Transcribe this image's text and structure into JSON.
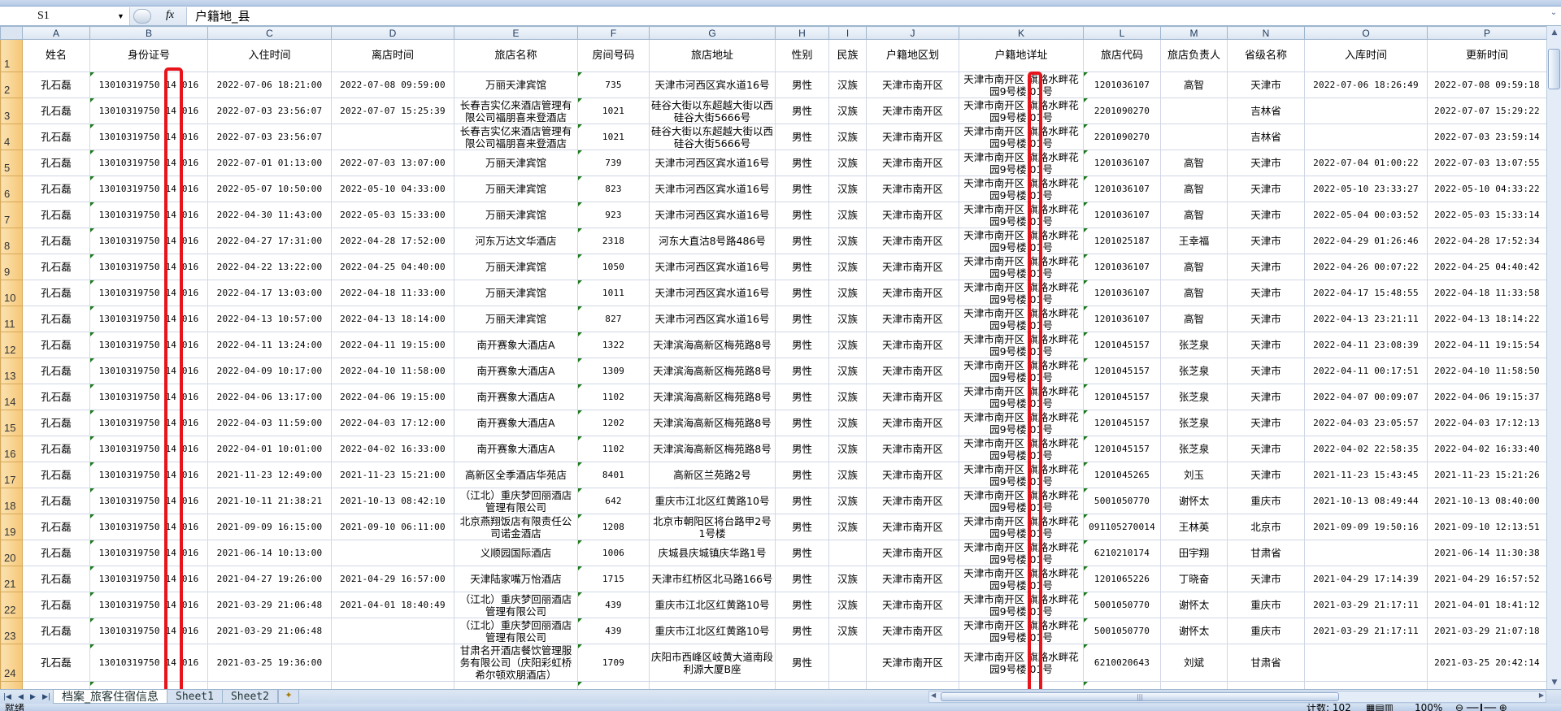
{
  "formula_bar": {
    "name_box": "S1",
    "dropdown_icon": "chevron-down-icon",
    "fx_label": "fx",
    "content": "户籍地_县"
  },
  "columns": [
    "A",
    "B",
    "C",
    "D",
    "E",
    "F",
    "G",
    "H",
    "I",
    "J",
    "K",
    "L",
    "M",
    "N",
    "O",
    "P"
  ],
  "headers": [
    "姓名",
    "身份证号",
    "入住时间",
    "离店时间",
    "旅店名称",
    "房间号码",
    "旅店地址",
    "性别",
    "民族",
    "户籍地区划",
    "户籍地详址",
    "旅店代码",
    "旅店负责人",
    "省级名称",
    "入库时间",
    "更新时间"
  ],
  "rows": [
    [
      "孔石磊",
      "13010319750 14 016",
      "2022-07-06 18:21:00",
      "2022-07-08 09:59:00",
      "万丽天津宾馆",
      "735",
      "天津市河西区宾水道16号",
      "男性",
      "汉族",
      "天津市南开区",
      "天津市南开区 旗路水畔花园9号楼 01号",
      "1201036107",
      "高智",
      "天津市",
      "2022-07-06 18:26:49",
      "2022-07-08 09:59:18"
    ],
    [
      "孔石磊",
      "13010319750 14 016",
      "2022-07-03 23:56:07",
      "2022-07-07 15:25:39",
      "长春吉实亿来酒店管理有限公司福朋喜来登酒店",
      "1021",
      "硅谷大街以东超越大街以西硅谷大街5666号",
      "男性",
      "汉族",
      "天津市南开区",
      "天津市南开区 旗路水畔花园9号楼 01号",
      "2201090270",
      "",
      "吉林省",
      "",
      "2022-07-07 15:29:22"
    ],
    [
      "孔石磊",
      "13010319750 14 016",
      "2022-07-03 23:56:07",
      "",
      "长春吉实亿来酒店管理有限公司福朋喜来登酒店",
      "1021",
      "硅谷大街以东超越大街以西硅谷大街5666号",
      "男性",
      "汉族",
      "天津市南开区",
      "天津市南开区 旗路水畔花园9号楼 01号",
      "2201090270",
      "",
      "吉林省",
      "",
      "2022-07-03 23:59:14"
    ],
    [
      "孔石磊",
      "13010319750 14 016",
      "2022-07-01 01:13:00",
      "2022-07-03 13:07:00",
      "万丽天津宾馆",
      "739",
      "天津市河西区宾水道16号",
      "男性",
      "汉族",
      "天津市南开区",
      "天津市南开区 旗路水畔花园9号楼 01号",
      "1201036107",
      "高智",
      "天津市",
      "2022-07-04 01:00:22",
      "2022-07-03 13:07:55"
    ],
    [
      "孔石磊",
      "13010319750 14 016",
      "2022-05-07 10:50:00",
      "2022-05-10 04:33:00",
      "万丽天津宾馆",
      "823",
      "天津市河西区宾水道16号",
      "男性",
      "汉族",
      "天津市南开区",
      "天津市南开区 旗路水畔花园9号楼 01号",
      "1201036107",
      "高智",
      "天津市",
      "2022-05-10 23:33:27",
      "2022-05-10 04:33:22"
    ],
    [
      "孔石磊",
      "13010319750 14 016",
      "2022-04-30 11:43:00",
      "2022-05-03 15:33:00",
      "万丽天津宾馆",
      "923",
      "天津市河西区宾水道16号",
      "男性",
      "汉族",
      "天津市南开区",
      "天津市南开区 旗路水畔花园9号楼 01号",
      "1201036107",
      "高智",
      "天津市",
      "2022-05-04 00:03:52",
      "2022-05-03 15:33:14"
    ],
    [
      "孔石磊",
      "13010319750 14 016",
      "2022-04-27 17:31:00",
      "2022-04-28 17:52:00",
      "河东万达文华酒店",
      "2318",
      "河东大直沽8号路486号",
      "男性",
      "汉族",
      "天津市南开区",
      "天津市南开区 旗路水畔花园9号楼 01号",
      "1201025187",
      "王幸福",
      "天津市",
      "2022-04-29 01:26:46",
      "2022-04-28 17:52:34"
    ],
    [
      "孔石磊",
      "13010319750 14 016",
      "2022-04-22 13:22:00",
      "2022-04-25 04:40:00",
      "万丽天津宾馆",
      "1050",
      "天津市河西区宾水道16号",
      "男性",
      "汉族",
      "天津市南开区",
      "天津市南开区 旗路水畔花园9号楼 01号",
      "1201036107",
      "高智",
      "天津市",
      "2022-04-26 00:07:22",
      "2022-04-25 04:40:42"
    ],
    [
      "孔石磊",
      "13010319750 14 016",
      "2022-04-17 13:03:00",
      "2022-04-18 11:33:00",
      "万丽天津宾馆",
      "1011",
      "天津市河西区宾水道16号",
      "男性",
      "汉族",
      "天津市南开区",
      "天津市南开区 旗路水畔花园9号楼 01号",
      "1201036107",
      "高智",
      "天津市",
      "2022-04-17 15:48:55",
      "2022-04-18 11:33:58"
    ],
    [
      "孔石磊",
      "13010319750 14 016",
      "2022-04-13 10:57:00",
      "2022-04-13 18:14:00",
      "万丽天津宾馆",
      "827",
      "天津市河西区宾水道16号",
      "男性",
      "汉族",
      "天津市南开区",
      "天津市南开区 旗路水畔花园9号楼 01号",
      "1201036107",
      "高智",
      "天津市",
      "2022-04-13 23:21:11",
      "2022-04-13 18:14:22"
    ],
    [
      "孔石磊",
      "13010319750 14 016",
      "2022-04-11 13:24:00",
      "2022-04-11 19:15:00",
      "南开赛象大酒店A",
      "1322",
      "天津滨海高新区梅苑路8号",
      "男性",
      "汉族",
      "天津市南开区",
      "天津市南开区 旗路水畔花园9号楼 01号",
      "1201045157",
      "张芝泉",
      "天津市",
      "2022-04-11 23:08:39",
      "2022-04-11 19:15:54"
    ],
    [
      "孔石磊",
      "13010319750 14 016",
      "2022-04-09 10:17:00",
      "2022-04-10 11:58:00",
      "南开赛象大酒店A",
      "1309",
      "天津滨海高新区梅苑路8号",
      "男性",
      "汉族",
      "天津市南开区",
      "天津市南开区 旗路水畔花园9号楼 01号",
      "1201045157",
      "张芝泉",
      "天津市",
      "2022-04-11 00:17:51",
      "2022-04-10 11:58:50"
    ],
    [
      "孔石磊",
      "13010319750 14 016",
      "2022-04-06 13:17:00",
      "2022-04-06 19:15:00",
      "南开赛象大酒店A",
      "1102",
      "天津滨海高新区梅苑路8号",
      "男性",
      "汉族",
      "天津市南开区",
      "天津市南开区 旗路水畔花园9号楼 01号",
      "1201045157",
      "张芝泉",
      "天津市",
      "2022-04-07 00:09:07",
      "2022-04-06 19:15:37"
    ],
    [
      "孔石磊",
      "13010319750 14 016",
      "2022-04-03 11:59:00",
      "2022-04-03 17:12:00",
      "南开赛象大酒店A",
      "1202",
      "天津滨海高新区梅苑路8号",
      "男性",
      "汉族",
      "天津市南开区",
      "天津市南开区 旗路水畔花园9号楼 01号",
      "1201045157",
      "张芝泉",
      "天津市",
      "2022-04-03 23:05:57",
      "2022-04-03 17:12:13"
    ],
    [
      "孔石磊",
      "13010319750 14 016",
      "2022-04-01 10:01:00",
      "2022-04-02 16:33:00",
      "南开赛象大酒店A",
      "1102",
      "天津滨海高新区梅苑路8号",
      "男性",
      "汉族",
      "天津市南开区",
      "天津市南开区 旗路水畔花园9号楼 01号",
      "1201045157",
      "张芝泉",
      "天津市",
      "2022-04-02 22:58:35",
      "2022-04-02 16:33:40"
    ],
    [
      "孔石磊",
      "13010319750 14 016",
      "2021-11-23 12:49:00",
      "2021-11-23 15:21:00",
      "高新区全季酒店华苑店",
      "8401",
      "高新区兰苑路2号",
      "男性",
      "汉族",
      "天津市南开区",
      "天津市南开区 旗路水畔花园9号楼 01号",
      "1201045265",
      "刘玉",
      "天津市",
      "2021-11-23 15:43:45",
      "2021-11-23 15:21:26"
    ],
    [
      "孔石磊",
      "13010319750 14 016",
      "2021-10-11 21:38:21",
      "2021-10-13 08:42:10",
      "（江北）重庆梦回丽酒店管理有限公司",
      "642",
      "重庆市江北区红黄路10号",
      "男性",
      "汉族",
      "天津市南开区",
      "天津市南开区 旗路水畔花园9号楼 01号",
      "5001050770",
      "谢怀太",
      "重庆市",
      "2021-10-13 08:49:44",
      "2021-10-13 08:40:00"
    ],
    [
      "孔石磊",
      "13010319750 14 016",
      "2021-09-09 16:15:00",
      "2021-09-10 06:11:00",
      "北京燕翔饭店有限责任公司诺金酒店",
      "1208",
      "北京市朝阳区将台路甲2号1号楼",
      "男性",
      "汉族",
      "天津市南开区",
      "天津市南开区 旗路水畔花园9号楼 01号",
      "091105270014",
      "王林英",
      "北京市",
      "2021-09-09 19:50:16",
      "2021-09-10 12:13:51"
    ],
    [
      "孔石磊",
      "13010319750 14 016",
      "2021-06-14 10:13:00",
      "",
      "义顺园国际酒店",
      "1006",
      "庆城县庆城镇庆华路1号",
      "男性",
      "",
      "天津市南开区",
      "天津市南开区 旗路水畔花园9号楼 01号",
      "6210210174",
      "田宇翔",
      "甘肃省",
      "",
      "2021-06-14 11:30:38"
    ],
    [
      "孔石磊",
      "13010319750 14 016",
      "2021-04-27 19:26:00",
      "2021-04-29 16:57:00",
      "天津陆家嘴万怡酒店",
      "1715",
      "天津市红桥区北马路166号",
      "男性",
      "汉族",
      "天津市南开区",
      "天津市南开区 旗路水畔花园9号楼 01号",
      "1201065226",
      "丁晓奋",
      "天津市",
      "2021-04-29 17:14:39",
      "2021-04-29 16:57:52"
    ],
    [
      "孔石磊",
      "13010319750 14 016",
      "2021-03-29 21:06:48",
      "2021-04-01 18:40:49",
      "（江北）重庆梦回丽酒店管理有限公司",
      "439",
      "重庆市江北区红黄路10号",
      "男性",
      "汉族",
      "天津市南开区",
      "天津市南开区 旗路水畔花园9号楼 01号",
      "5001050770",
      "谢怀太",
      "重庆市",
      "2021-03-29 21:17:11",
      "2021-04-01 18:41:12"
    ],
    [
      "孔石磊",
      "13010319750 14 016",
      "2021-03-29 21:06:48",
      "",
      "（江北）重庆梦回丽酒店管理有限公司",
      "439",
      "重庆市江北区红黄路10号",
      "男性",
      "汉族",
      "天津市南开区",
      "天津市南开区 旗路水畔花园9号楼 01号",
      "5001050770",
      "谢怀太",
      "重庆市",
      "2021-03-29 21:17:11",
      "2021-03-29 21:07:18"
    ],
    [
      "孔石磊",
      "13010319750 14 016",
      "2021-03-25 19:36:00",
      "",
      "甘肃名开酒店餐饮管理服务有限公司（庆阳彩虹桥希尔顿欢朋酒店）",
      "1709",
      "庆阳市西峰区岐黄大道南段利源大厦B座",
      "男性",
      "",
      "天津市南开区",
      "天津市南开区 旗路水畔花园9号楼 01号",
      "6210020643",
      "刘斌",
      "甘肃省",
      "",
      "2021-03-25 20:42:14"
    ]
  ],
  "sheet_tabs": {
    "nav_icons": [
      "first-sheet-icon",
      "prev-sheet-icon",
      "next-sheet-icon",
      "last-sheet-icon"
    ],
    "tabs": [
      "档案_旅客住宿信息",
      "Sheet1",
      "Sheet2"
    ],
    "active": "档案_旅客住宿信息"
  },
  "status_bar": {
    "ready": "就绪",
    "count": "计数: 102",
    "zoom": "100%"
  },
  "colors": {
    "highlight_box": "#e8141b",
    "row_header": "#f6c777",
    "column_header": "#dbe5f1",
    "text_number_marker": "#1c7a1c"
  }
}
